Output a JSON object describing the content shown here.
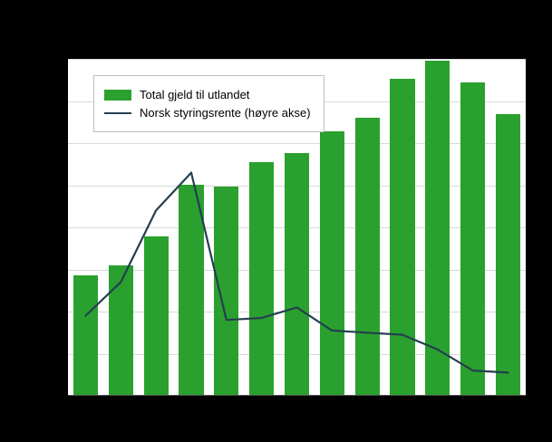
{
  "chart_data": {
    "type": "bar",
    "note_type": "combination bar + line chart",
    "categories": [
      "",
      "",
      "",
      "",
      "",
      "",
      "",
      "",
      "",
      "",
      "",
      "",
      ""
    ],
    "axis_tick_labels_visible": false,
    "series": [
      {
        "name": "Total gjeld til utlandet",
        "type": "bar",
        "axis": "left",
        "values": [
          2840,
          3080,
          3760,
          4990,
          4950,
          5530,
          5740,
          6260,
          6580,
          7500,
          7940,
          7420,
          6670
        ]
      },
      {
        "name": "Norsk styringsrente (høyre akse)",
        "type": "line",
        "axis": "right",
        "values": [
          1.9,
          2.7,
          4.4,
          5.3,
          1.8,
          1.85,
          2.1,
          1.55,
          1.5,
          1.45,
          1.1,
          0.6,
          0.55
        ]
      }
    ],
    "left_ylim": [
      0,
      8000
    ],
    "right_ylim": [
      0,
      8
    ],
    "gridline_count": 8,
    "grid": "horizontal",
    "legend_position": "top-left-inside"
  },
  "legend": {
    "items": [
      {
        "label": "Total gjeld til utlandet",
        "swatch": "bar"
      },
      {
        "label": "Norsk styringsrente (høyre akse)",
        "swatch": "line"
      }
    ]
  },
  "colors": {
    "bar": "#2aa12e",
    "line": "#243f4f",
    "background": "#000000",
    "plot_background": "#ffffff",
    "gridline": "#d9d9d9",
    "axis": "#4d4d4d",
    "legend_border": "#bdbdbd"
  }
}
